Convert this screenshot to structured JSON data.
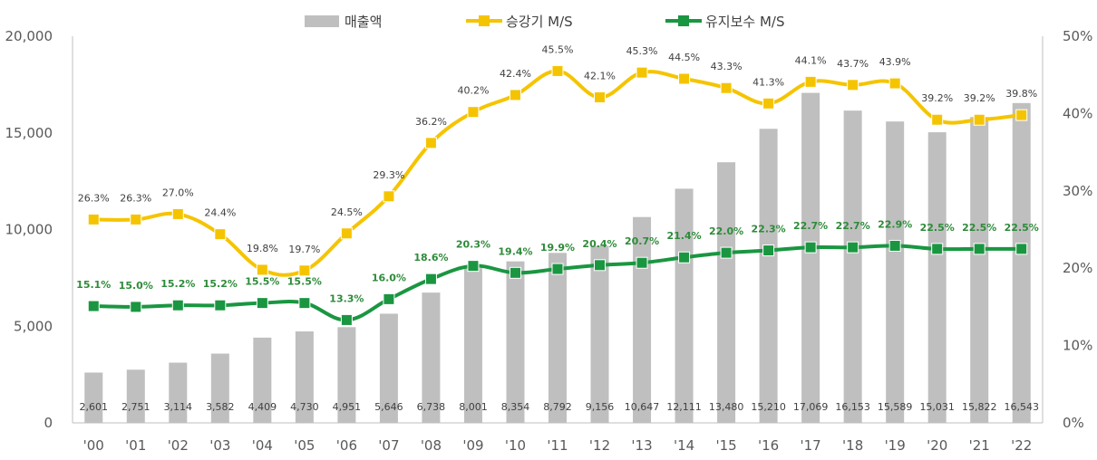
{
  "chart_data": {
    "type": "bar",
    "categories": [
      "'00",
      "'01",
      "'02",
      "'03",
      "'04",
      "'05",
      "'06",
      "'07",
      "'08",
      "'09",
      "'10",
      "'11",
      "'12",
      "'13",
      "'14",
      "'15",
      "'16",
      "'17",
      "'18",
      "'19",
      "'20",
      "'21",
      "'22"
    ],
    "ylim": [
      0,
      20000
    ],
    "y2lim": [
      0,
      50
    ],
    "y_ticks": [
      "0",
      "5,000",
      "10,000",
      "15,000",
      "20,000"
    ],
    "y2_ticks": [
      "0%",
      "10%",
      "20%",
      "30%",
      "40%",
      "50%"
    ],
    "legend_position": "top",
    "grid": false,
    "series": [
      {
        "name": "매출액",
        "type": "bar",
        "axis": "left",
        "color": "#bfbfbf",
        "values": [
          2601,
          2751,
          3114,
          3582,
          4409,
          4730,
          4951,
          5646,
          6738,
          8001,
          8354,
          8792,
          9156,
          10647,
          12111,
          13480,
          15210,
          17069,
          16153,
          15589,
          15031,
          15822,
          16543
        ],
        "labels": [
          "2,601",
          "2,751",
          "3,114",
          "3,582",
          "4,409",
          "4,730",
          "4,951",
          "5,646",
          "6,738",
          "8,001",
          "8,354",
          "8,792",
          "9,156",
          "10,647",
          "12,111",
          "13,480",
          "15,210",
          "17,069",
          "16,153",
          "15,589",
          "15,031",
          "15,822",
          "16,543"
        ]
      },
      {
        "name": "승강기 M/S",
        "type": "line",
        "axis": "right",
        "color": "#f5c400",
        "values": [
          26.3,
          26.3,
          27.0,
          24.4,
          19.8,
          19.7,
          24.5,
          29.3,
          36.2,
          40.2,
          42.4,
          45.5,
          42.1,
          45.3,
          44.5,
          43.3,
          41.3,
          44.1,
          43.7,
          43.9,
          39.2,
          39.2,
          39.8
        ],
        "labels": [
          "26.3%",
          "26.3%",
          "27.0%",
          "24.4%",
          "19.8%",
          "19.7%",
          "24.5%",
          "29.3%",
          "36.2%",
          "40.2%",
          "42.4%",
          "45.5%",
          "42.1%",
          "45.3%",
          "44.5%",
          "43.3%",
          "41.3%",
          "44.1%",
          "43.7%",
          "43.9%",
          "39.2%",
          "39.2%",
          "39.8%"
        ]
      },
      {
        "name": "유지보수 M/S",
        "type": "line",
        "axis": "right",
        "color": "#1a9641",
        "values": [
          15.1,
          15.0,
          15.2,
          15.2,
          15.5,
          15.5,
          13.3,
          16.0,
          18.6,
          20.3,
          19.4,
          19.9,
          20.4,
          20.7,
          21.4,
          22.0,
          22.3,
          22.7,
          22.7,
          22.9,
          22.5,
          22.5,
          22.5
        ],
        "labels": [
          "15.1%",
          "15.0%",
          "15.2%",
          "15.2%",
          "15.5%",
          "15.5%",
          "13.3%",
          "16.0%",
          "18.6%",
          "20.3%",
          "19.4%",
          "19.9%",
          "20.4%",
          "20.7%",
          "21.4%",
          "22.0%",
          "22.3%",
          "22.7%",
          "22.7%",
          "22.9%",
          "22.5%",
          "22.5%",
          "22.5%"
        ]
      }
    ]
  }
}
